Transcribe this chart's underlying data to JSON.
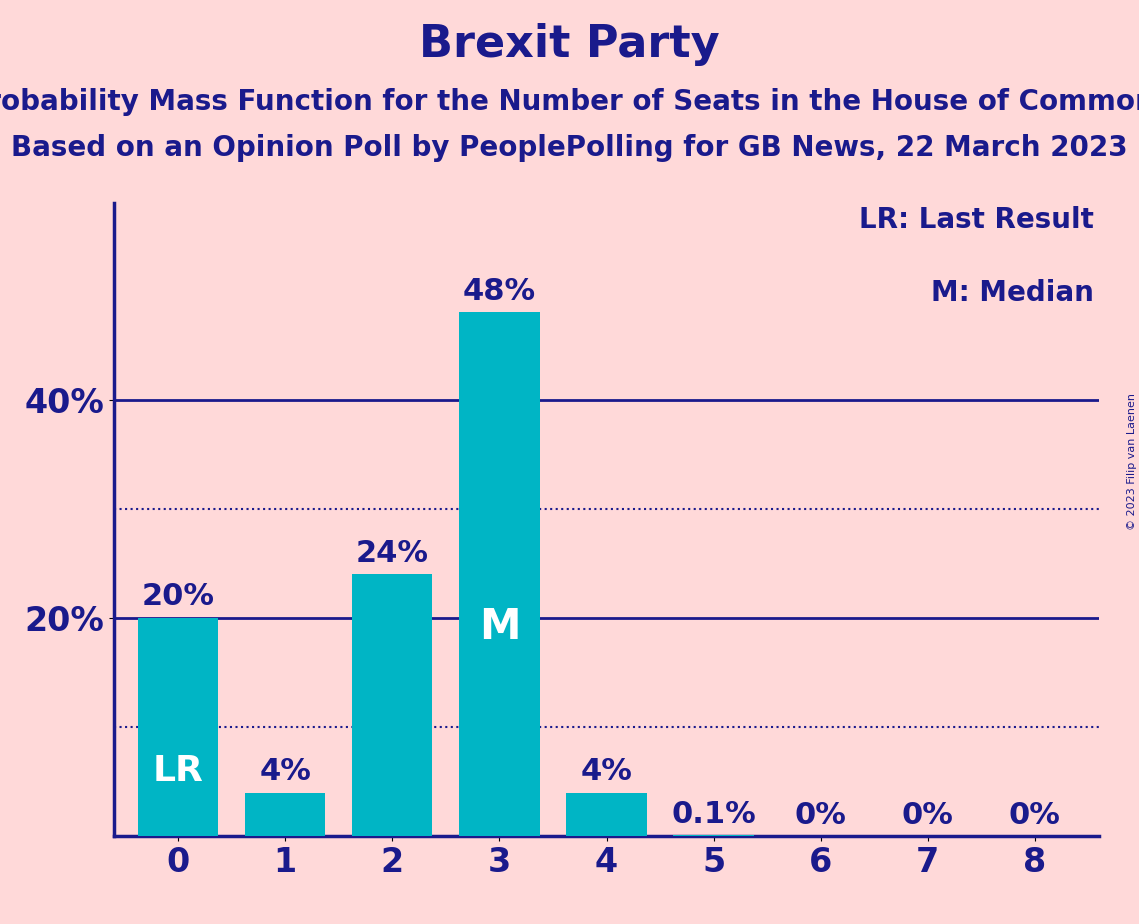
{
  "title": "Brexit Party",
  "subtitle1": "Probability Mass Function for the Number of Seats in the House of Commons",
  "subtitle2": "Based on an Opinion Poll by PeoplePolling for GB News, 22 March 2023",
  "copyright": "© 2023 Filip van Laenen",
  "categories": [
    0,
    1,
    2,
    3,
    4,
    5,
    6,
    7,
    8
  ],
  "values": [
    20,
    4,
    24,
    48,
    4,
    0.1,
    0,
    0,
    0
  ],
  "bar_color": "#00B5C5",
  "background_color": "#FFD9D9",
  "title_color": "#1a1a8c",
  "axis_color": "#1a1a8c",
  "text_color": "#1a1a8c",
  "white": "#FFFFFF",
  "yticks": [
    20,
    40
  ],
  "ytick_labels": [
    "20%",
    "40%"
  ],
  "ylim": [
    0,
    58
  ],
  "solid_hlines": [
    20,
    40
  ],
  "dotted_hlines": [
    10,
    30
  ],
  "lr_bar": 0,
  "median_bar": 3,
  "legend_text": [
    "LR: Last Result",
    "M: Median"
  ],
  "title_fontsize": 32,
  "subtitle_fontsize": 20,
  "bar_label_fontsize": 22,
  "tick_label_fontsize": 24,
  "legend_fontsize": 20,
  "bar_width": 0.75
}
